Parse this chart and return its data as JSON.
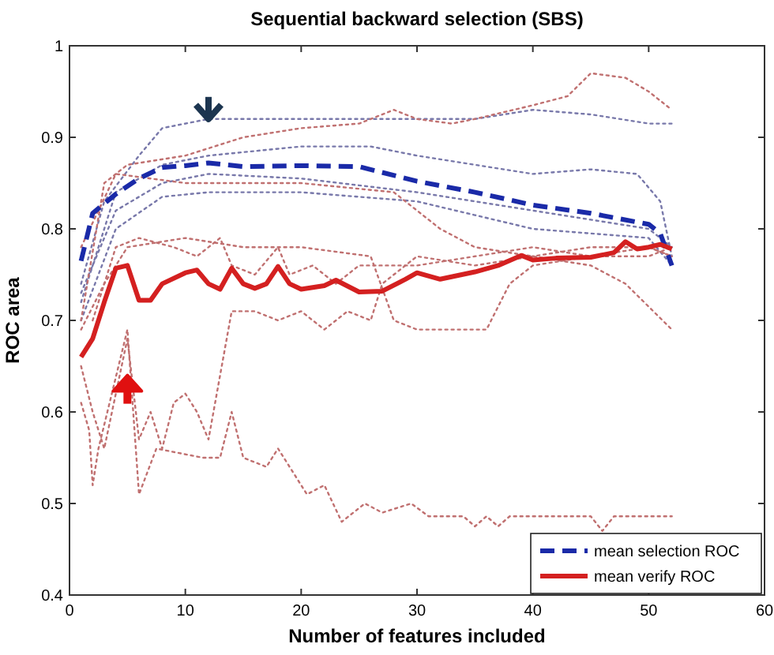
{
  "chart_data": {
    "type": "line",
    "title": "Sequential backward selection (SBS)",
    "xlabel": "Number of features included",
    "ylabel": "ROC area",
    "xlim": [
      0,
      60
    ],
    "ylim": [
      0.4,
      1
    ],
    "xticks": [
      0,
      10,
      20,
      30,
      40,
      50,
      60
    ],
    "yticks": [
      0.4,
      0.5,
      0.6,
      0.7,
      0.8,
      0.9,
      1
    ],
    "grid": false,
    "legend": "bottom right",
    "marker": "none",
    "series": [
      {
        "color": "#7878aa",
        "line_style": "dotted",
        "x": [
          1,
          3,
          6,
          8,
          12,
          18,
          25,
          30,
          35,
          40,
          45,
          50,
          52
        ],
        "values": [
          0.74,
          0.83,
          0.88,
          0.91,
          0.92,
          0.92,
          0.92,
          0.92,
          0.92,
          0.93,
          0.925,
          0.915,
          0.915
        ]
      },
      {
        "color": "#7878aa",
        "line_style": "dotted",
        "x": [
          1,
          4,
          8,
          12,
          20,
          26,
          30,
          35,
          40,
          45,
          49,
          51,
          52
        ],
        "values": [
          0.72,
          0.84,
          0.87,
          0.88,
          0.89,
          0.89,
          0.88,
          0.87,
          0.86,
          0.865,
          0.86,
          0.83,
          0.77
        ]
      },
      {
        "color": "#7878aa",
        "line_style": "dotted",
        "x": [
          1,
          4,
          8,
          12,
          20,
          30,
          35,
          40,
          45,
          50,
          52
        ],
        "values": [
          0.73,
          0.82,
          0.85,
          0.86,
          0.855,
          0.84,
          0.83,
          0.82,
          0.81,
          0.8,
          0.78
        ]
      },
      {
        "color": "#7878aa",
        "line_style": "dotted",
        "x": [
          1,
          4,
          8,
          12,
          20,
          25,
          30,
          35,
          40,
          45,
          50,
          52
        ],
        "values": [
          0.7,
          0.8,
          0.835,
          0.84,
          0.84,
          0.835,
          0.83,
          0.815,
          0.8,
          0.795,
          0.79,
          0.76
        ]
      },
      {
        "color": "#c07070",
        "line_style": "dotted",
        "x": [
          1,
          3,
          5,
          10,
          15,
          20,
          25,
          28,
          30,
          33,
          35,
          40,
          43,
          45,
          48,
          50,
          52
        ],
        "values": [
          0.7,
          0.85,
          0.87,
          0.88,
          0.9,
          0.91,
          0.915,
          0.93,
          0.92,
          0.915,
          0.92,
          0.935,
          0.945,
          0.97,
          0.965,
          0.95,
          0.93
        ]
      },
      {
        "color": "#c07070",
        "line_style": "dotted",
        "x": [
          1,
          4,
          10,
          20,
          28,
          32,
          35,
          40,
          45,
          48,
          52
        ],
        "values": [
          0.78,
          0.86,
          0.85,
          0.85,
          0.84,
          0.8,
          0.78,
          0.77,
          0.76,
          0.74,
          0.69
        ]
      },
      {
        "color": "#c07070",
        "line_style": "dotted",
        "x": [
          2,
          4,
          6,
          9,
          11,
          13,
          14,
          16,
          18,
          19,
          21,
          23,
          25,
          27,
          30,
          35,
          40,
          45,
          50,
          52
        ],
        "values": [
          0.7,
          0.78,
          0.79,
          0.78,
          0.77,
          0.79,
          0.76,
          0.75,
          0.78,
          0.75,
          0.76,
          0.74,
          0.76,
          0.76,
          0.76,
          0.77,
          0.78,
          0.77,
          0.78,
          0.77
        ]
      },
      {
        "color": "#c07070",
        "line_style": "dotted",
        "x": [
          1,
          3,
          5,
          10,
          15,
          20,
          26,
          28,
          30,
          36,
          38,
          40,
          45,
          50,
          52
        ],
        "values": [
          0.69,
          0.74,
          0.78,
          0.79,
          0.78,
          0.78,
          0.77,
          0.7,
          0.69,
          0.69,
          0.74,
          0.76,
          0.77,
          0.77,
          0.78
        ]
      },
      {
        "color": "#c07070",
        "line_style": "dotted",
        "x": [
          1,
          2,
          3,
          4,
          5,
          6,
          7,
          8,
          9,
          10,
          11,
          12,
          14,
          16,
          18,
          20,
          22,
          24,
          26,
          27,
          30,
          35,
          40,
          45,
          50,
          52
        ],
        "values": [
          0.65,
          0.6,
          0.56,
          0.62,
          0.68,
          0.57,
          0.6,
          0.56,
          0.61,
          0.62,
          0.6,
          0.57,
          0.71,
          0.71,
          0.7,
          0.71,
          0.69,
          0.71,
          0.7,
          0.74,
          0.77,
          0.76,
          0.77,
          0.78,
          0.78,
          0.77
        ]
      },
      {
        "color": "#c07070",
        "line_style": "dotted",
        "x": [
          1,
          1.7,
          2,
          2.5,
          5,
          6,
          7.5,
          11.5,
          13,
          14,
          15,
          17,
          18,
          20.5,
          22,
          23.5,
          25.5,
          27,
          29.5,
          31,
          34,
          35,
          36,
          37,
          38,
          45,
          46,
          47,
          52
        ],
        "values": [
          0.61,
          0.58,
          0.52,
          0.56,
          0.69,
          0.51,
          0.56,
          0.55,
          0.55,
          0.6,
          0.55,
          0.54,
          0.56,
          0.51,
          0.52,
          0.48,
          0.5,
          0.49,
          0.5,
          0.486,
          0.486,
          0.475,
          0.486,
          0.475,
          0.486,
          0.486,
          0.47,
          0.486,
          0.486
        ]
      },
      {
        "name": "mean selection ROC",
        "color": "#1a2aa8",
        "line_style": "dashed",
        "x": [
          1,
          2,
          4,
          6,
          8,
          10,
          12,
          15,
          20,
          25,
          30,
          35,
          40,
          45,
          50,
          51,
          52
        ],
        "values": [
          0.765,
          0.817,
          0.838,
          0.855,
          0.867,
          0.869,
          0.872,
          0.868,
          0.869,
          0.868,
          0.852,
          0.84,
          0.826,
          0.817,
          0.805,
          0.795,
          0.76
        ]
      },
      {
        "name": "mean verify ROC",
        "color": "#d42020",
        "line_style": "solid",
        "x": [
          1,
          2,
          3,
          4,
          5,
          6,
          7,
          8,
          10,
          11,
          12,
          13,
          14,
          15,
          16,
          17,
          18,
          19,
          20,
          22,
          23,
          25,
          27,
          29,
          30,
          32,
          35,
          37,
          39,
          40,
          42,
          45,
          47,
          48,
          49,
          50,
          51,
          52
        ],
        "values": [
          0.66,
          0.68,
          0.72,
          0.757,
          0.76,
          0.722,
          0.722,
          0.74,
          0.752,
          0.755,
          0.74,
          0.734,
          0.757,
          0.74,
          0.735,
          0.74,
          0.759,
          0.74,
          0.734,
          0.738,
          0.744,
          0.731,
          0.732,
          0.745,
          0.752,
          0.745,
          0.753,
          0.76,
          0.771,
          0.766,
          0.768,
          0.769,
          0.774,
          0.786,
          0.778,
          0.78,
          0.783,
          0.778
        ]
      }
    ]
  }
}
